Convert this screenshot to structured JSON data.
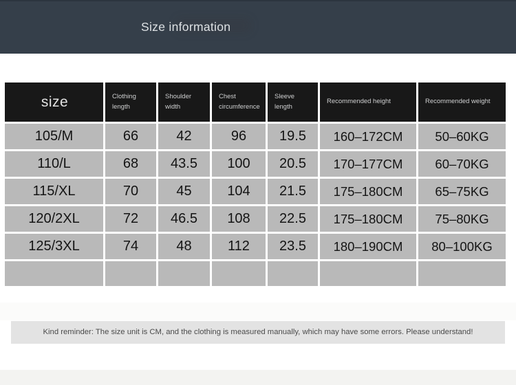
{
  "chart_data": {
    "type": "table",
    "title": "Size information",
    "columns": [
      "size",
      "Clothing length",
      "Shoulder width",
      "Chest circumference",
      "Sleeve length",
      "Recommended height",
      "Recommended weight"
    ],
    "rows": [
      [
        "105/M",
        "66",
        "42",
        "96",
        "19.5",
        "160–172CM",
        "50–60KG"
      ],
      [
        "110/L",
        "68",
        "43.5",
        "100",
        "20.5",
        "170–177CM",
        "60–70KG"
      ],
      [
        "115/XL",
        "70",
        "45",
        "104",
        "21.5",
        "175–180CM",
        "65–75KG"
      ],
      [
        "120/2XL",
        "72",
        "46.5",
        "108",
        "22.5",
        "175–180CM",
        "75–80KG"
      ],
      [
        "125/3XL",
        "74",
        "48",
        "112",
        "23.5",
        "180–190CM",
        "80–100KG"
      ],
      [
        "",
        "",
        "",
        "",
        "",
        "",
        ""
      ]
    ],
    "note": "Kind reminder: The size unit is CM, and the clothing is measured manually, which may have some errors. Please understand!",
    "layout_hints": {
      "unit": "CM",
      "empty_trailing_rows": 1
    }
  },
  "colors": {
    "top_bar": "#353f4a",
    "header_cell": "#181818",
    "header_text": "#cfd0d1",
    "body_cell": "#b9b9b9",
    "body_text": "#141414",
    "note_bar": "#e3e3e3",
    "note_text": "#4a4a4a",
    "page_background": "#ffffff"
  }
}
